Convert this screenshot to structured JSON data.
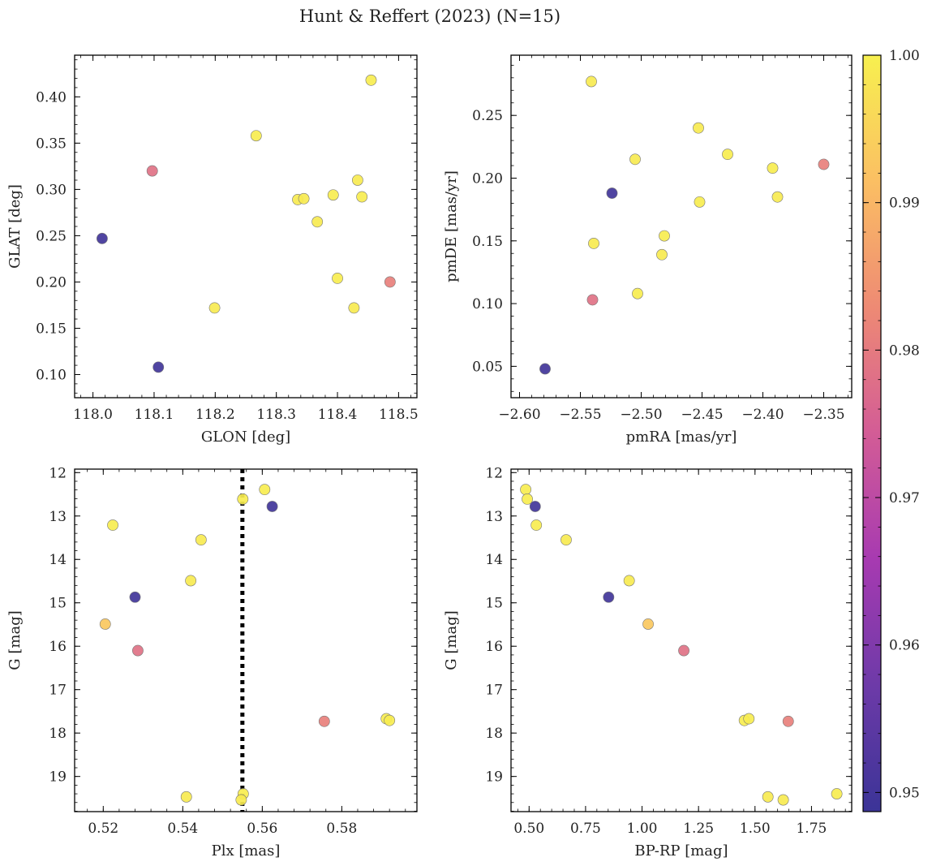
{
  "figure_title": "Hunt & Reffert (2023) (N=15)",
  "colorbar": {
    "ticks": [
      "0.95",
      "0.96",
      "0.97",
      "0.98",
      "0.99",
      "1.00"
    ],
    "tick_values": [
      0.95,
      0.96,
      0.97,
      0.98,
      0.99,
      1.0
    ],
    "range": [
      0.9487,
      1.0
    ],
    "colormap": "plasma",
    "stops": [
      "#3b3497",
      "#6d3aa8",
      "#a73ab1",
      "#d35c96",
      "#ee8a74",
      "#fbbf63",
      "#f7f04f"
    ]
  },
  "chart_data": [
    {
      "type": "scatter",
      "name": "glon-glat",
      "xlabel": "GLON [deg]",
      "ylabel": "GLAT [deg]",
      "xlim": [
        117.97,
        118.53
      ],
      "ylim": [
        0.075,
        0.445
      ],
      "xticks": [
        118.0,
        118.1,
        118.2,
        118.3,
        118.4,
        118.5
      ],
      "xticklabels": [
        "118.0",
        "118.1",
        "118.2",
        "118.3",
        "118.4",
        "118.5"
      ],
      "yticks": [
        0.1,
        0.15,
        0.2,
        0.25,
        0.3,
        0.35,
        0.4
      ],
      "yticklabels": [
        "0.10",
        "0.15",
        "0.20",
        "0.25",
        "0.30",
        "0.35",
        "0.40"
      ],
      "invert_y": false,
      "points": [
        {
          "x": 118.015,
          "y": 0.247,
          "c": 0.9498
        },
        {
          "x": 118.107,
          "y": 0.108,
          "c": 0.9498
        },
        {
          "x": 118.097,
          "y": 0.32,
          "c": 0.9785
        },
        {
          "x": 118.486,
          "y": 0.2,
          "c": 0.981
        },
        {
          "x": 118.455,
          "y": 0.418,
          "c": 0.9995
        },
        {
          "x": 118.267,
          "y": 0.358,
          "c": 0.9995
        },
        {
          "x": 118.199,
          "y": 0.172,
          "c": 0.999
        },
        {
          "x": 118.335,
          "y": 0.289,
          "c": 0.999
        },
        {
          "x": 118.345,
          "y": 0.29,
          "c": 0.999
        },
        {
          "x": 118.367,
          "y": 0.265,
          "c": 0.999
        },
        {
          "x": 118.393,
          "y": 0.294,
          "c": 0.9995
        },
        {
          "x": 118.4,
          "y": 0.204,
          "c": 0.9995
        },
        {
          "x": 118.427,
          "y": 0.172,
          "c": 0.999
        },
        {
          "x": 118.433,
          "y": 0.31,
          "c": 0.999
        },
        {
          "x": 118.44,
          "y": 0.292,
          "c": 0.9995
        }
      ]
    },
    {
      "type": "scatter",
      "name": "pmra-pmde",
      "xlabel": "pmRA [mas/yr]",
      "ylabel": "pmDE [mas/yr]",
      "xlim": [
        -2.607,
        -2.327
      ],
      "ylim": [
        0.025,
        0.298
      ],
      "xticks": [
        -2.6,
        -2.55,
        -2.5,
        -2.45,
        -2.4,
        -2.35
      ],
      "xticklabels": [
        "−2.60",
        "−2.55",
        "−2.50",
        "−2.45",
        "−2.40",
        "−2.35"
      ],
      "yticks": [
        0.05,
        0.1,
        0.15,
        0.2,
        0.25
      ],
      "yticklabels": [
        "0.05",
        "0.10",
        "0.15",
        "0.20",
        "0.25"
      ],
      "invert_y": false,
      "points": [
        {
          "x": -2.579,
          "y": 0.048,
          "c": 0.9498
        },
        {
          "x": -2.524,
          "y": 0.188,
          "c": 0.9498
        },
        {
          "x": -2.54,
          "y": 0.103,
          "c": 0.9785
        },
        {
          "x": -2.35,
          "y": 0.211,
          "c": 0.981
        },
        {
          "x": -2.541,
          "y": 0.277,
          "c": 0.999
        },
        {
          "x": -2.539,
          "y": 0.148,
          "c": 0.999
        },
        {
          "x": -2.505,
          "y": 0.215,
          "c": 0.999
        },
        {
          "x": -2.503,
          "y": 0.108,
          "c": 0.9995
        },
        {
          "x": -2.483,
          "y": 0.139,
          "c": 0.999
        },
        {
          "x": -2.481,
          "y": 0.154,
          "c": 0.9995
        },
        {
          "x": -2.453,
          "y": 0.24,
          "c": 0.999
        },
        {
          "x": -2.452,
          "y": 0.181,
          "c": 0.9995
        },
        {
          "x": -2.429,
          "y": 0.219,
          "c": 0.9995
        },
        {
          "x": -2.392,
          "y": 0.208,
          "c": 0.9995
        },
        {
          "x": -2.388,
          "y": 0.185,
          "c": 0.999
        }
      ]
    },
    {
      "type": "scatter",
      "name": "plx-g",
      "xlabel": "Plx [mas]",
      "ylabel": "G [mag]",
      "xlim": [
        0.5128,
        0.5989
      ],
      "ylim": [
        11.92,
        19.81
      ],
      "xticks": [
        0.52,
        0.54,
        0.56,
        0.58
      ],
      "xticklabels": [
        "0.52",
        "0.54",
        "0.56",
        "0.58"
      ],
      "yticks": [
        12,
        13,
        14,
        15,
        16,
        17,
        18,
        19
      ],
      "yticklabels": [
        "12",
        "13",
        "14",
        "15",
        "16",
        "17",
        "18",
        "19"
      ],
      "invert_y": true,
      "vline": 0.555,
      "points": [
        {
          "x": 0.5625,
          "y": 12.78,
          "c": 0.9498
        },
        {
          "x": 0.528,
          "y": 14.87,
          "c": 0.9498
        },
        {
          "x": 0.5287,
          "y": 16.1,
          "c": 0.9785
        },
        {
          "x": 0.5756,
          "y": 17.73,
          "c": 0.981
        },
        {
          "x": 0.5606,
          "y": 12.39,
          "c": 0.9995
        },
        {
          "x": 0.5551,
          "y": 12.61,
          "c": 0.9995
        },
        {
          "x": 0.5224,
          "y": 13.21,
          "c": 0.9995
        },
        {
          "x": 0.5446,
          "y": 13.55,
          "c": 0.999
        },
        {
          "x": 0.542,
          "y": 14.49,
          "c": 0.999
        },
        {
          "x": 0.5205,
          "y": 15.49,
          "c": 0.993
        },
        {
          "x": 0.5912,
          "y": 17.67,
          "c": 0.9995
        },
        {
          "x": 0.592,
          "y": 17.71,
          "c": 0.9995
        },
        {
          "x": 0.5409,
          "y": 19.47,
          "c": 0.999
        },
        {
          "x": 0.5552,
          "y": 19.4,
          "c": 0.9995
        },
        {
          "x": 0.5547,
          "y": 19.54,
          "c": 0.999
        }
      ]
    },
    {
      "type": "scatter",
      "name": "bprp-g",
      "xlabel": "BP-RP [mag]",
      "ylabel": "G [mag]",
      "xlim": [
        0.42,
        1.928
      ],
      "ylim": [
        11.92,
        19.81
      ],
      "xticks": [
        0.5,
        0.75,
        1.0,
        1.25,
        1.5,
        1.75
      ],
      "xticklabels": [
        "0.50",
        "0.75",
        "1.00",
        "1.25",
        "1.50",
        "1.75"
      ],
      "yticks": [
        12,
        13,
        14,
        15,
        16,
        17,
        18,
        19
      ],
      "yticklabels": [
        "12",
        "13",
        "14",
        "15",
        "16",
        "17",
        "18",
        "19"
      ],
      "invert_y": true,
      "points": [
        {
          "x": 0.527,
          "y": 12.78,
          "c": 0.9498
        },
        {
          "x": 0.852,
          "y": 14.87,
          "c": 0.9498
        },
        {
          "x": 1.185,
          "y": 16.1,
          "c": 0.9785
        },
        {
          "x": 1.647,
          "y": 17.73,
          "c": 0.981
        },
        {
          "x": 0.485,
          "y": 12.39,
          "c": 0.9995
        },
        {
          "x": 0.492,
          "y": 12.61,
          "c": 0.9995
        },
        {
          "x": 0.532,
          "y": 13.21,
          "c": 0.9995
        },
        {
          "x": 0.664,
          "y": 13.55,
          "c": 0.999
        },
        {
          "x": 0.943,
          "y": 14.49,
          "c": 0.999
        },
        {
          "x": 1.027,
          "y": 15.49,
          "c": 0.993
        },
        {
          "x": 1.453,
          "y": 17.71,
          "c": 0.9995
        },
        {
          "x": 1.473,
          "y": 17.67,
          "c": 0.9995
        },
        {
          "x": 1.557,
          "y": 19.47,
          "c": 0.999
        },
        {
          "x": 1.625,
          "y": 19.54,
          "c": 0.999
        },
        {
          "x": 1.862,
          "y": 19.4,
          "c": 0.9995
        }
      ]
    }
  ]
}
